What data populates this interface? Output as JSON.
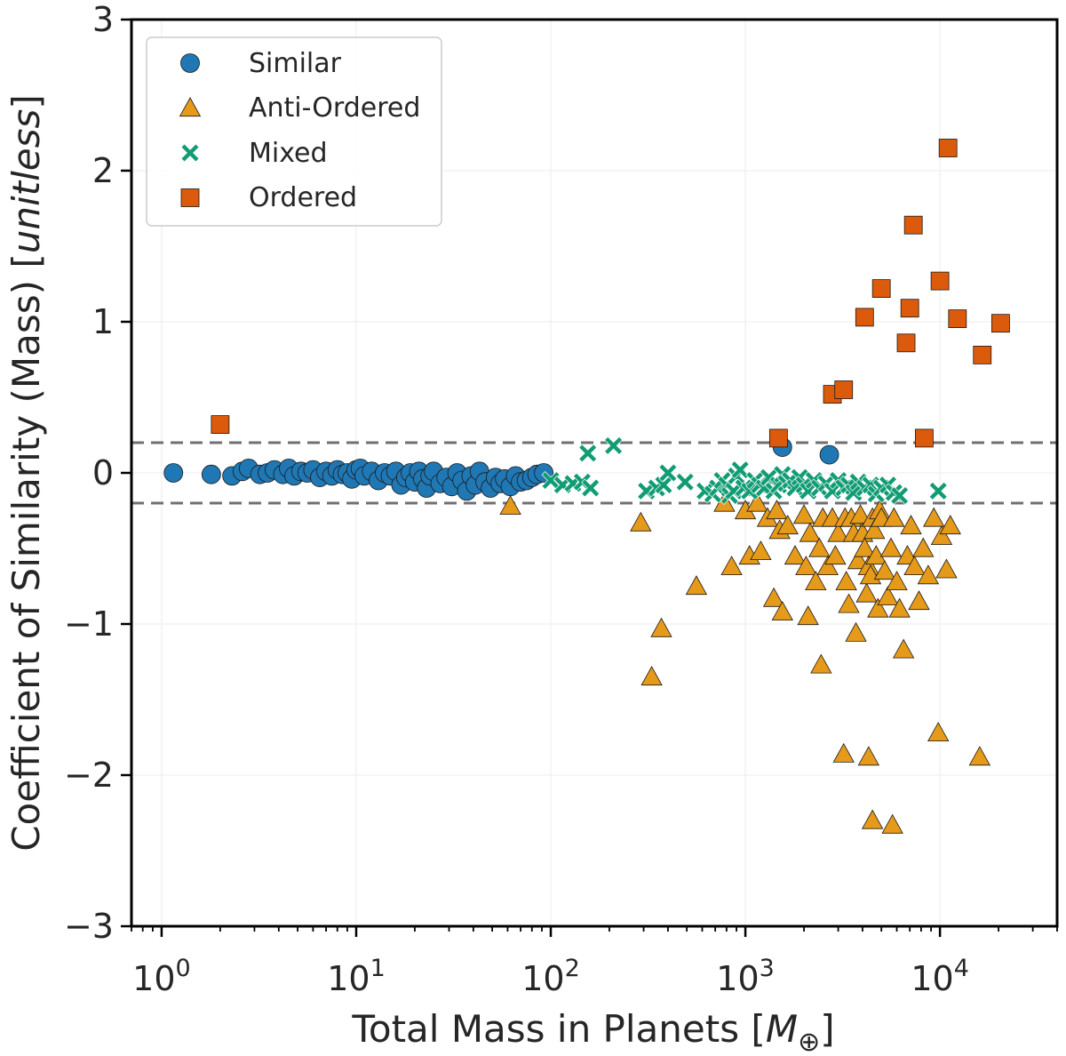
{
  "chart_data": {
    "type": "scatter",
    "title": "",
    "xlabel": "Total Mass in Planets [M⊕]",
    "xlabel_parts": {
      "prefix": "Total Mass in Planets [",
      "symbol": "M",
      "subscript": "⊕",
      "suffix": "]"
    },
    "ylabel": "Coefficient of Similarity (Mass) [unitless]",
    "ylabel_parts": {
      "prefix": "Coefficient of Similarity (Mass) [",
      "italic": "unitless",
      "suffix": "]"
    },
    "xscale": "log",
    "xlim": [
      0.7,
      40000
    ],
    "ylim": [
      -3,
      3
    ],
    "grid": true,
    "legend_position": "upper-left",
    "x_ticks": [
      {
        "value": 1,
        "base": "10",
        "exp": "0"
      },
      {
        "value": 10,
        "base": "10",
        "exp": "1"
      },
      {
        "value": 100,
        "base": "10",
        "exp": "2"
      },
      {
        "value": 1000,
        "base": "10",
        "exp": "3"
      },
      {
        "value": 10000,
        "base": "10",
        "exp": "4"
      }
    ],
    "y_ticks": [
      {
        "value": 3,
        "label": "3"
      },
      {
        "value": 2,
        "label": "2"
      },
      {
        "value": 1,
        "label": "1"
      },
      {
        "value": 0,
        "label": "0"
      },
      {
        "value": -1,
        "label": "−1"
      },
      {
        "value": -2,
        "label": "−2"
      },
      {
        "value": -3,
        "label": "−3"
      }
    ],
    "reference_lines": [
      0.2,
      -0.2
    ],
    "colors": {
      "similar": "#1f77b4",
      "anti_ordered": "#e69a1a",
      "mixed": "#119c74",
      "ordered": "#dc5a0b",
      "reference_line": "#707070",
      "grid": "#ececec",
      "axis": "#000000"
    },
    "series": [
      {
        "name": "Similar",
        "marker": "circle",
        "points": [
          [
            1.15,
            0.0
          ],
          [
            1.8,
            -0.01
          ],
          [
            2.3,
            -0.02
          ],
          [
            2.6,
            0.01
          ],
          [
            2.8,
            0.03
          ],
          [
            3.2,
            -0.01
          ],
          [
            3.5,
            0.0
          ],
          [
            3.8,
            0.02
          ],
          [
            4.2,
            -0.01
          ],
          [
            4.5,
            0.03
          ],
          [
            4.8,
            -0.02
          ],
          [
            5.2,
            0.01
          ],
          [
            5.6,
            0.0
          ],
          [
            6.0,
            0.02
          ],
          [
            6.5,
            -0.03
          ],
          [
            7.0,
            0.01
          ],
          [
            7.5,
            -0.02
          ],
          [
            8.0,
            0.02
          ],
          [
            8.5,
            -0.01
          ],
          [
            9.0,
            0.0
          ],
          [
            9.5,
            -0.04
          ],
          [
            10.0,
            0.02
          ],
          [
            10.5,
            0.03
          ],
          [
            11.0,
            -0.02
          ],
          [
            12.0,
            0.01
          ],
          [
            13.0,
            -0.05
          ],
          [
            14.0,
            0.0
          ],
          [
            15.0,
            -0.02
          ],
          [
            16.0,
            0.01
          ],
          [
            17.0,
            -0.08
          ],
          [
            18.0,
            -0.03
          ],
          [
            19.0,
            0.0
          ],
          [
            20.0,
            -0.06
          ],
          [
            21.0,
            0.01
          ],
          [
            22.0,
            -0.04
          ],
          [
            23.0,
            -0.1
          ],
          [
            24.0,
            -0.02
          ],
          [
            25.0,
            0.01
          ],
          [
            27.0,
            -0.07
          ],
          [
            29.0,
            -0.03
          ],
          [
            31.0,
            -0.09
          ],
          [
            33.0,
            0.0
          ],
          [
            35.0,
            -0.05
          ],
          [
            37.0,
            -0.12
          ],
          [
            39.0,
            -0.02
          ],
          [
            41.0,
            -0.08
          ],
          [
            43.0,
            0.01
          ],
          [
            46.0,
            -0.06
          ],
          [
            49.0,
            -0.1
          ],
          [
            52.0,
            -0.03
          ],
          [
            55.0,
            -0.07
          ],
          [
            58.0,
            -0.04
          ],
          [
            62.0,
            -0.09
          ],
          [
            66.0,
            -0.02
          ],
          [
            70.0,
            -0.06
          ],
          [
            75.0,
            -0.05
          ],
          [
            80.0,
            -0.03
          ],
          [
            85.0,
            -0.01
          ],
          [
            92.0,
            0.0
          ],
          [
            1550,
            0.17
          ],
          [
            2700,
            0.12
          ]
        ]
      },
      {
        "name": "Anti-Ordered",
        "marker": "triangle",
        "points": [
          [
            62,
            -0.22
          ],
          [
            290,
            -0.33
          ],
          [
            330,
            -1.35
          ],
          [
            370,
            -1.03
          ],
          [
            560,
            -0.75
          ],
          [
            780,
            -0.2
          ],
          [
            850,
            -0.62
          ],
          [
            1000,
            -0.25
          ],
          [
            1050,
            -0.55
          ],
          [
            1150,
            -0.2
          ],
          [
            1200,
            -0.52
          ],
          [
            1300,
            -0.3
          ],
          [
            1400,
            -0.83
          ],
          [
            1450,
            -0.25
          ],
          [
            1500,
            -0.38
          ],
          [
            1550,
            -0.92
          ],
          [
            1650,
            -0.35
          ],
          [
            1800,
            -0.55
          ],
          [
            2000,
            -0.28
          ],
          [
            2050,
            -0.62
          ],
          [
            2100,
            -0.95
          ],
          [
            2150,
            -0.4
          ],
          [
            2300,
            -0.72
          ],
          [
            2400,
            -0.5
          ],
          [
            2450,
            -1.27
          ],
          [
            2500,
            -0.3
          ],
          [
            2650,
            -0.62
          ],
          [
            2800,
            -0.3
          ],
          [
            2900,
            -0.55
          ],
          [
            3000,
            -0.4
          ],
          [
            3250,
            -0.3
          ],
          [
            3300,
            -0.72
          ],
          [
            3400,
            -0.87
          ],
          [
            3500,
            -0.3
          ],
          [
            3600,
            -0.4
          ],
          [
            3700,
            -1.06
          ],
          [
            3800,
            -0.58
          ],
          [
            3900,
            -0.28
          ],
          [
            4000,
            -0.4
          ],
          [
            4100,
            -0.5
          ],
          [
            4200,
            -0.8
          ],
          [
            4300,
            -0.62
          ],
          [
            4400,
            -0.68
          ],
          [
            4500,
            -0.3
          ],
          [
            4600,
            -0.38
          ],
          [
            4700,
            -0.55
          ],
          [
            4800,
            -0.9
          ],
          [
            4900,
            -0.25
          ],
          [
            5000,
            -0.3
          ],
          [
            5200,
            -0.65
          ],
          [
            5400,
            -0.82
          ],
          [
            5600,
            -0.5
          ],
          [
            5800,
            -0.3
          ],
          [
            6000,
            -0.72
          ],
          [
            6200,
            -0.9
          ],
          [
            6500,
            -1.17
          ],
          [
            6800,
            -0.55
          ],
          [
            7100,
            -0.35
          ],
          [
            7400,
            -0.62
          ],
          [
            7800,
            -0.85
          ],
          [
            8200,
            -0.5
          ],
          [
            8700,
            -0.68
          ],
          [
            9300,
            -0.3
          ],
          [
            10200,
            -0.42
          ],
          [
            10800,
            -0.64
          ],
          [
            11300,
            -0.35
          ],
          [
            3200,
            -1.86
          ],
          [
            4300,
            -1.88
          ],
          [
            4500,
            -2.3
          ],
          [
            5700,
            -2.33
          ],
          [
            9800,
            -1.72
          ],
          [
            16000,
            -1.88
          ]
        ]
      },
      {
        "name": "Mixed",
        "marker": "x",
        "points": [
          [
            100,
            -0.05
          ],
          [
            115,
            -0.08
          ],
          [
            130,
            -0.07
          ],
          [
            145,
            -0.06
          ],
          [
            155,
            0.13
          ],
          [
            160,
            -0.1
          ],
          [
            210,
            0.18
          ],
          [
            310,
            -0.12
          ],
          [
            350,
            -0.1
          ],
          [
            380,
            -0.08
          ],
          [
            400,
            0.0
          ],
          [
            490,
            -0.06
          ],
          [
            620,
            -0.12
          ],
          [
            680,
            -0.14
          ],
          [
            720,
            -0.1
          ],
          [
            760,
            -0.05
          ],
          [
            800,
            -0.08
          ],
          [
            830,
            -0.15
          ],
          [
            870,
            -0.12
          ],
          [
            900,
            -0.02
          ],
          [
            940,
            0.02
          ],
          [
            980,
            -0.1
          ],
          [
            1050,
            -0.12
          ],
          [
            1120,
            -0.05
          ],
          [
            1180,
            -0.08
          ],
          [
            1250,
            -0.1
          ],
          [
            1320,
            -0.03
          ],
          [
            1400,
            -0.12
          ],
          [
            1480,
            -0.08
          ],
          [
            1550,
            -0.01
          ],
          [
            1620,
            -0.07
          ],
          [
            1700,
            -0.05
          ],
          [
            1800,
            -0.1
          ],
          [
            1900,
            -0.03
          ],
          [
            2000,
            -0.08
          ],
          [
            2100,
            -0.12
          ],
          [
            2250,
            -0.05
          ],
          [
            2400,
            -0.1
          ],
          [
            2600,
            -0.07
          ],
          [
            2800,
            -0.12
          ],
          [
            3000,
            -0.05
          ],
          [
            3200,
            -0.1
          ],
          [
            3400,
            -0.08
          ],
          [
            3600,
            -0.13
          ],
          [
            3800,
            -0.06
          ],
          [
            4100,
            -0.1
          ],
          [
            4400,
            -0.08
          ],
          [
            4700,
            -0.14
          ],
          [
            5000,
            -0.1
          ],
          [
            5400,
            -0.08
          ],
          [
            5800,
            -0.13
          ],
          [
            6200,
            -0.15
          ],
          [
            9800,
            -0.12
          ]
        ]
      },
      {
        "name": "Ordered",
        "marker": "square",
        "points": [
          [
            2.0,
            0.32
          ],
          [
            1480,
            0.23
          ],
          [
            2800,
            0.52
          ],
          [
            3200,
            0.55
          ],
          [
            4100,
            1.03
          ],
          [
            5000,
            1.22
          ],
          [
            6700,
            0.86
          ],
          [
            7000,
            1.09
          ],
          [
            7300,
            1.64
          ],
          [
            8300,
            0.23
          ],
          [
            10000,
            1.27
          ],
          [
            11000,
            2.15
          ],
          [
            12300,
            1.02
          ],
          [
            16500,
            0.78
          ],
          [
            20500,
            0.99
          ]
        ]
      }
    ]
  }
}
